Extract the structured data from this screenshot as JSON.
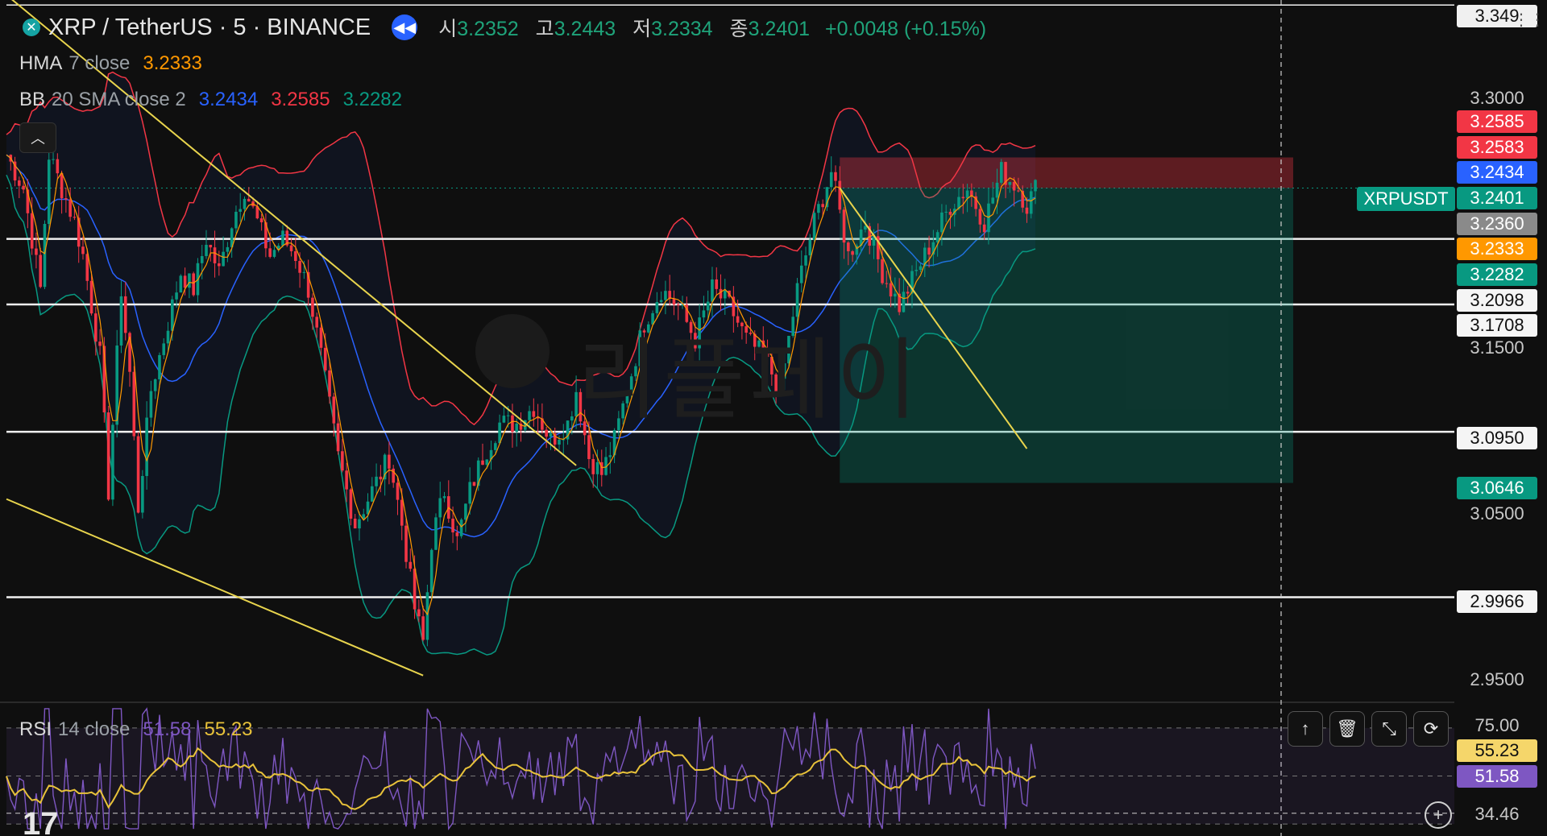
{
  "header": {
    "symbol_title": "XRP / TetherUS · 5 · BINANCE",
    "ohlc": {
      "open_label": "시",
      "open": "3.2352",
      "high_label": "고",
      "high": "3.2443",
      "low_label": "저",
      "low": "3.2334",
      "close_label": "종",
      "close": "3.2401",
      "change": "+0.0048 (+0.15%)"
    }
  },
  "indicators": {
    "hma": {
      "name": "HMA",
      "params": "7 close",
      "value": "3.2333"
    },
    "bb": {
      "name": "BB",
      "params": "20 SMA close 2",
      "basis": "3.2434",
      "upper": "3.2585",
      "lower": "3.2282"
    },
    "rsi": {
      "name": "RSI",
      "params": "14 close",
      "value": "51.58",
      "ma": "55.23"
    }
  },
  "watermark": "리플페이",
  "symbol_tag": "XRPUSDT",
  "price_labels": {
    "top": "3.349",
    "p3_3000": "3.3000",
    "bb_upper": "3.2585",
    "level_3_2583": "3.2583",
    "bb_basis": "3.2434",
    "last": "3.2401",
    "level_3_2360": "3.2360",
    "hma": "3.2333",
    "bb_lower": "3.2282",
    "hline_3_2098": "3.2098",
    "hline_3_1708": "3.1708",
    "p3_1500": "3.1500",
    "hline_3_0950": "3.0950",
    "target": "3.0646",
    "p3_0500": "3.0500",
    "hline_2_9966": "2.9966",
    "p2_9500": "2.9500"
  },
  "rsi_labels": {
    "top": "75.00",
    "ma": "55.23",
    "rsi": "51.58",
    "cursor": "34.46"
  },
  "toolbar_icons": [
    "arrow-up-icon",
    "trash-icon",
    "collapse-icon",
    "refresh-icon"
  ],
  "colors": {
    "up": "#089981",
    "down": "#f23645",
    "hma": "#ff9800",
    "bb_basis": "#2962ff",
    "bb_upper": "#f23645",
    "bb_lower": "#089981",
    "trend": "#e8d44d",
    "rsi": "#7e57c2",
    "rsi_ma": "#e8c23a"
  },
  "chart_data": {
    "type": "candlestick",
    "ylim": [
      2.935,
      3.352
    ],
    "horizontal_levels": [
      3.349,
      3.2098,
      3.1708,
      3.095,
      2.9966
    ],
    "short_position": {
      "entry": 3.2401,
      "stop": 3.2583,
      "target": 3.0646
    },
    "price_path": [
      [
        0,
        3.26
      ],
      [
        4,
        3.24
      ],
      [
        8,
        3.18
      ],
      [
        10,
        3.26
      ],
      [
        13,
        3.24
      ],
      [
        16,
        3.22
      ],
      [
        18,
        3.2
      ],
      [
        22,
        3.14
      ],
      [
        24,
        3.06
      ],
      [
        27,
        3.18
      ],
      [
        29,
        3.13
      ],
      [
        31,
        3.05
      ],
      [
        34,
        3.12
      ],
      [
        38,
        3.16
      ],
      [
        41,
        3.19
      ],
      [
        44,
        3.18
      ],
      [
        47,
        3.21
      ],
      [
        50,
        3.19
      ],
      [
        53,
        3.22
      ],
      [
        56,
        3.24
      ],
      [
        59,
        3.22
      ],
      [
        62,
        3.2
      ],
      [
        65,
        3.21
      ],
      [
        68,
        3.2
      ],
      [
        71,
        3.18
      ],
      [
        74,
        3.14
      ],
      [
        78,
        3.08
      ],
      [
        82,
        3.04
      ],
      [
        86,
        3.06
      ],
      [
        90,
        3.08
      ],
      [
        93,
        3.04
      ],
      [
        96,
        2.99
      ],
      [
        98,
        2.97
      ],
      [
        100,
        3.03
      ],
      [
        103,
        3.06
      ],
      [
        106,
        3.03
      ],
      [
        109,
        3.06
      ],
      [
        112,
        3.08
      ],
      [
        116,
        3.1
      ],
      [
        120,
        3.1
      ],
      [
        124,
        3.11
      ],
      [
        128,
        3.09
      ],
      [
        132,
        3.1
      ],
      [
        134,
        3.12
      ],
      [
        137,
        3.08
      ],
      [
        140,
        3.07
      ],
      [
        143,
        3.09
      ],
      [
        146,
        3.12
      ],
      [
        150,
        3.16
      ],
      [
        154,
        3.18
      ],
      [
        158,
        3.17
      ],
      [
        162,
        3.15
      ],
      [
        166,
        3.18
      ],
      [
        170,
        3.17
      ],
      [
        174,
        3.15
      ],
      [
        178,
        3.14
      ],
      [
        182,
        3.12
      ],
      [
        186,
        3.18
      ],
      [
        190,
        3.22
      ],
      [
        194,
        3.25
      ],
      [
        198,
        3.2
      ],
      [
        202,
        3.22
      ],
      [
        206,
        3.19
      ],
      [
        210,
        3.17
      ],
      [
        214,
        3.19
      ],
      [
        218,
        3.21
      ],
      [
        222,
        3.23
      ],
      [
        226,
        3.24
      ],
      [
        230,
        3.22
      ],
      [
        234,
        3.25
      ],
      [
        238,
        3.24
      ],
      [
        240,
        3.23
      ],
      [
        242,
        3.24
      ]
    ],
    "trendlines": [
      {
        "from": [
          0,
          3.355
        ],
        "to": [
          134,
          3.075
        ]
      },
      {
        "from": [
          0,
          3.055
        ],
        "to": [
          98,
          2.95
        ]
      },
      {
        "from": [
          196,
          3.2401
        ],
        "to": [
          240,
          3.085
        ]
      }
    ],
    "rsi_range": [
      25,
      80
    ]
  }
}
